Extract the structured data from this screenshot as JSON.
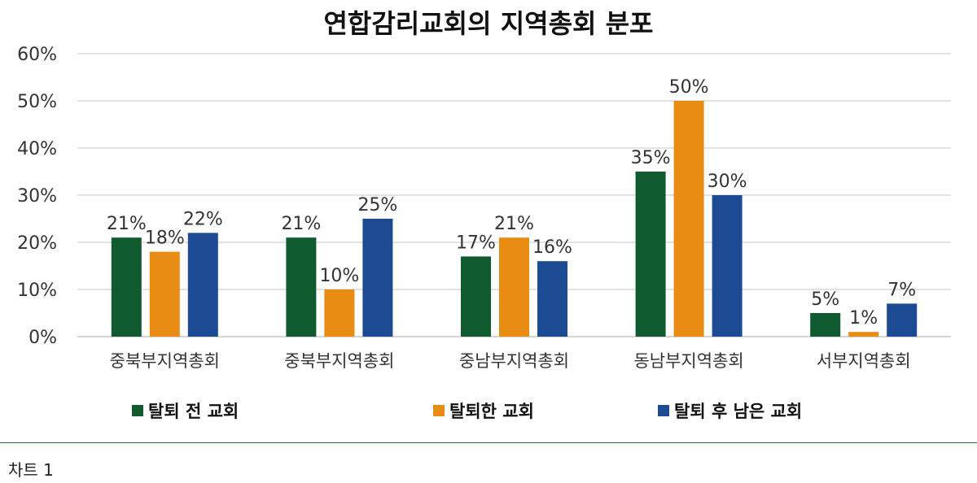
{
  "caption": "차트 1",
  "chart_data": {
    "type": "bar",
    "title": "연합감리교회의 지역총회 분포",
    "xlabel": "",
    "ylabel": "",
    "ylim": [
      0,
      60
    ],
    "yticks": [
      "0%",
      "10%",
      "20%",
      "30%",
      "40%",
      "50%",
      "60%"
    ],
    "grid": true,
    "legend_position": "bottom",
    "categories": [
      "중북부지역총회",
      "중북부지역총회",
      "중남부지역총회",
      "동남부지역총회",
      "서부지역총회"
    ],
    "series": [
      {
        "name": "탈퇴 전 교회",
        "color": "#0f5a2e",
        "values": [
          21,
          21,
          17,
          35,
          5
        ],
        "labels": [
          "21%",
          "21%",
          "17%",
          "35%",
          "5%"
        ]
      },
      {
        "name": "탈퇴한 교회",
        "color": "#e88c14",
        "values": [
          18,
          10,
          21,
          50,
          1
        ],
        "labels": [
          "18%",
          "10%",
          "21%",
          "50%",
          "1%"
        ]
      },
      {
        "name": "탈퇴 후 남은 교회",
        "color": "#1c4b94",
        "values": [
          22,
          25,
          16,
          30,
          7
        ],
        "labels": [
          "22%",
          "25%",
          "16%",
          "30%",
          "7%"
        ]
      }
    ]
  }
}
